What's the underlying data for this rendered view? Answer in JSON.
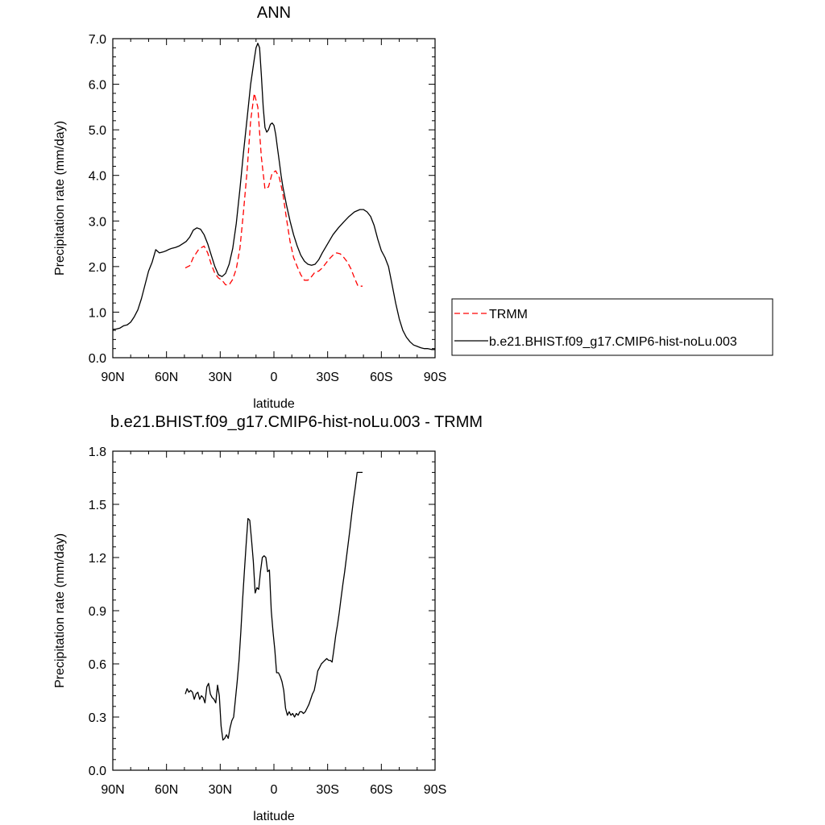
{
  "chart_data": [
    {
      "type": "line",
      "title": "ANN",
      "xlabel": "latitude",
      "ylabel": "Precipitation rate (mm/day)",
      "xlim": [
        90,
        -90
      ],
      "ylim": [
        0,
        7
      ],
      "x_ticks": [
        90,
        60,
        30,
        0,
        -30,
        -60,
        -90
      ],
      "x_tick_labels": [
        "90N",
        "60N",
        "30N",
        "0",
        "30S",
        "60S",
        "90S"
      ],
      "y_ticks": [
        0,
        1,
        2,
        3,
        4,
        5,
        6,
        7
      ],
      "y_tick_labels": [
        "0.0",
        "1.0",
        "2.0",
        "3.0",
        "4.0",
        "5.0",
        "6.0",
        "7.0"
      ],
      "grid": false,
      "legend_placement": "right",
      "series": [
        {
          "name": "TRMM",
          "color": "#ff0000",
          "dash": "dashed",
          "x": [
            49.5,
            47,
            45,
            42,
            39,
            37,
            35,
            33,
            31,
            29,
            27,
            25,
            23,
            21,
            19,
            17,
            15,
            13,
            11,
            9,
            7,
            5,
            3,
            1,
            -1,
            -3,
            -5,
            -7,
            -9,
            -11,
            -13,
            -15,
            -17,
            -19,
            -21,
            -23,
            -25,
            -27,
            -29,
            -31,
            -33,
            -35,
            -37,
            -39,
            -41,
            -43,
            -45,
            -47,
            -49.5
          ],
          "y": [
            1.97,
            2.02,
            2.2,
            2.38,
            2.45,
            2.3,
            2.05,
            1.85,
            1.75,
            1.7,
            1.6,
            1.6,
            1.72,
            1.95,
            2.4,
            3.2,
            4.1,
            5.2,
            5.8,
            5.5,
            4.4,
            3.7,
            3.75,
            4.05,
            4.1,
            3.95,
            3.6,
            3.05,
            2.55,
            2.2,
            2.0,
            1.82,
            1.7,
            1.7,
            1.78,
            1.88,
            1.9,
            1.97,
            2.07,
            2.17,
            2.25,
            2.3,
            2.28,
            2.2,
            2.1,
            1.95,
            1.75,
            1.57,
            1.57
          ]
        },
        {
          "name": "b.e21.BHIST.f09_g17.CMIP6-hist-noLu.003",
          "color": "#000000",
          "dash": "solid",
          "x": [
            90,
            88,
            86,
            84,
            82,
            80,
            78,
            76,
            74,
            72,
            70,
            68,
            66,
            64,
            62,
            60,
            59,
            57,
            55,
            53,
            51,
            49,
            47,
            45,
            43,
            41,
            39,
            37,
            35,
            33,
            31,
            29,
            27,
            25,
            23,
            21,
            19,
            17,
            15,
            13,
            11,
            10,
            9,
            8,
            7,
            6,
            5,
            4,
            3,
            2,
            1,
            0,
            -1,
            -2,
            -3,
            -4,
            -5,
            -7,
            -9,
            -11,
            -13,
            -15,
            -17,
            -19,
            -21,
            -23,
            -25,
            -27,
            -30,
            -33,
            -36,
            -39,
            -42,
            -45,
            -48,
            -50,
            -52,
            -54,
            -56,
            -58,
            -60,
            -62,
            -64,
            -66,
            -68,
            -70,
            -72,
            -74,
            -76,
            -78,
            -80,
            -82,
            -84,
            -86,
            -88,
            -90
          ],
          "y": [
            0.62,
            0.63,
            0.65,
            0.7,
            0.72,
            0.78,
            0.9,
            1.05,
            1.3,
            1.6,
            1.9,
            2.1,
            2.37,
            2.3,
            2.32,
            2.35,
            2.37,
            2.4,
            2.42,
            2.45,
            2.5,
            2.55,
            2.65,
            2.8,
            2.85,
            2.82,
            2.7,
            2.5,
            2.25,
            2.0,
            1.82,
            1.78,
            1.85,
            2.05,
            2.4,
            2.95,
            3.7,
            4.5,
            5.25,
            6.0,
            6.55,
            6.8,
            6.9,
            6.8,
            6.2,
            5.5,
            5.05,
            4.95,
            5.0,
            5.12,
            5.15,
            5.1,
            4.9,
            4.6,
            4.3,
            4.0,
            3.75,
            3.35,
            3.0,
            2.7,
            2.45,
            2.25,
            2.12,
            2.05,
            2.03,
            2.05,
            2.15,
            2.3,
            2.5,
            2.7,
            2.85,
            2.98,
            3.1,
            3.2,
            3.25,
            3.25,
            3.2,
            3.1,
            2.9,
            2.6,
            2.35,
            2.2,
            2.0,
            1.6,
            1.2,
            0.85,
            0.6,
            0.45,
            0.35,
            0.28,
            0.25,
            0.22,
            0.2,
            0.2,
            0.18,
            0.18
          ]
        }
      ]
    },
    {
      "type": "line",
      "title": "b.e21.BHIST.f09_g17.CMIP6-hist-noLu.003 - TRMM",
      "xlabel": "latitude",
      "ylabel": "Precipitation rate (mm/day)",
      "xlim": [
        90,
        -90
      ],
      "ylim": [
        0,
        1.8
      ],
      "x_ticks": [
        90,
        60,
        30,
        0,
        -30,
        -60,
        -90
      ],
      "x_tick_labels": [
        "90N",
        "60N",
        "30N",
        "0",
        "30S",
        "60S",
        "90S"
      ],
      "y_ticks": [
        0,
        0.3,
        0.6,
        0.9,
        1.2,
        1.5,
        1.8
      ],
      "y_tick_labels": [
        "0.0",
        "0.3",
        "0.6",
        "0.9",
        "1.2",
        "1.5",
        "1.8"
      ],
      "grid": false,
      "series": [
        {
          "color": "#000000",
          "dash": "solid",
          "x": [
            49.5,
            48.5,
            47.5,
            46.5,
            45.5,
            44.5,
            43.5,
            42.5,
            41.5,
            40.5,
            39.5,
            38.5,
            37.5,
            36.5,
            35.5,
            34.5,
            33.5,
            32.5,
            31.5,
            30.5,
            29.5,
            28.5,
            27.5,
            26.5,
            25.5,
            24.5,
            23.5,
            22.5,
            21.5,
            20.5,
            19.5,
            18.5,
            17.5,
            16.5,
            15.5,
            14.5,
            13.5,
            12.5,
            11.5,
            10.5,
            9.5,
            8.5,
            7.5,
            6.5,
            5.5,
            4.5,
            3.5,
            2.5,
            1.5,
            0.5,
            -0.5,
            -1.5,
            -2.5,
            -3.5,
            -4.5,
            -5.5,
            -6.5,
            -7.5,
            -8.5,
            -9.5,
            -10.5,
            -11.5,
            -12.5,
            -13.5,
            -14.5,
            -15.5,
            -16.5,
            -17.5,
            -18.5,
            -19.5,
            -20.5,
            -21.5,
            -22.5,
            -23.5,
            -24.5,
            -25.5,
            -26.5,
            -27.5,
            -28.5,
            -29.5,
            -30.5,
            -31.5,
            -32.5,
            -33.5,
            -34.5,
            -35.5,
            -36.5,
            -37.5,
            -38.5,
            -39.5,
            -40.5,
            -41.5,
            -42.5,
            -43.5,
            -44.5,
            -45.5,
            -46.5,
            -47.5,
            -48.5,
            -49.5
          ],
          "y": [
            0.43,
            0.46,
            0.44,
            0.45,
            0.44,
            0.4,
            0.43,
            0.44,
            0.4,
            0.42,
            0.41,
            0.38,
            0.47,
            0.49,
            0.43,
            0.41,
            0.4,
            0.38,
            0.48,
            0.42,
            0.25,
            0.17,
            0.18,
            0.2,
            0.18,
            0.24,
            0.28,
            0.3,
            0.4,
            0.5,
            0.62,
            0.78,
            0.96,
            1.12,
            1.28,
            1.42,
            1.41,
            1.3,
            1.18,
            1.0,
            1.03,
            1.02,
            1.12,
            1.2,
            1.21,
            1.2,
            1.12,
            1.13,
            0.9,
            0.78,
            0.68,
            0.55,
            0.55,
            0.53,
            0.5,
            0.45,
            0.35,
            0.31,
            0.33,
            0.31,
            0.32,
            0.3,
            0.32,
            0.31,
            0.33,
            0.33,
            0.32,
            0.33,
            0.35,
            0.37,
            0.4,
            0.43,
            0.45,
            0.5,
            0.56,
            0.58,
            0.6,
            0.61,
            0.62,
            0.63,
            0.62,
            0.62,
            0.61,
            0.68,
            0.76,
            0.82,
            0.89,
            0.97,
            1.05,
            1.12,
            1.2,
            1.28,
            1.36,
            1.45,
            1.53,
            1.6,
            1.68,
            1.68,
            1.68,
            1.68
          ]
        }
      ]
    }
  ]
}
